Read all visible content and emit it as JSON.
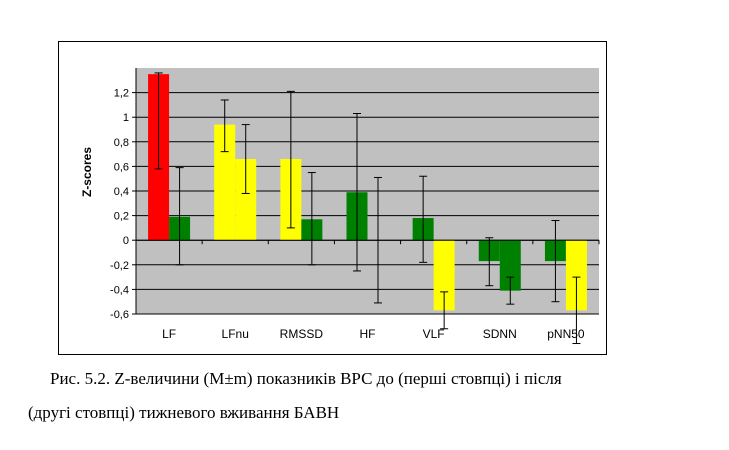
{
  "chart_data": {
    "type": "bar",
    "ylabel": "Z-scores",
    "ylim": [
      -0.6,
      1.4
    ],
    "yticks": [
      "1,2",
      "1",
      "0,8",
      "0,6",
      "0,4",
      "0,2",
      "0",
      "-0,2",
      "-0,4",
      "-0,6"
    ],
    "ytick_values": [
      1.2,
      1.0,
      0.8,
      0.6,
      0.4,
      0.2,
      0.0,
      -0.2,
      -0.4,
      -0.6
    ],
    "grid": true,
    "categories": [
      "LF",
      "LFnu",
      "RMSSD",
      "HF",
      "VLF",
      "SDNN",
      "pNN50"
    ],
    "bars": [
      [
        {
          "value": 1.35,
          "err_low": 0.58,
          "err_high": 1.36,
          "color": "#ff0000"
        },
        {
          "value": 0.19,
          "err_low": -0.2,
          "err_high": 0.59,
          "color": "#008000"
        }
      ],
      [
        {
          "value": 0.94,
          "err_low": 0.72,
          "err_high": 1.14,
          "color": "#ffff00"
        },
        {
          "value": 0.66,
          "err_low": 0.38,
          "err_high": 0.94,
          "color": "#ffff00"
        }
      ],
      [
        {
          "value": 0.66,
          "err_low": 0.1,
          "err_high": 1.21,
          "color": "#ffff00"
        },
        {
          "value": 0.17,
          "err_low": -0.2,
          "err_high": 0.55,
          "color": "#008000"
        }
      ],
      [
        {
          "value": 0.39,
          "err_low": -0.25,
          "err_high": 1.03,
          "color": "#008000"
        },
        {
          "value": 0.0,
          "err_low": -0.51,
          "err_high": 0.51,
          "color": "#008000"
        }
      ],
      [
        {
          "value": 0.18,
          "err_low": -0.18,
          "err_high": 0.52,
          "color": "#008000"
        },
        {
          "value": -0.57,
          "err_low": -0.72,
          "err_high": -0.42,
          "color": "#ffff00"
        }
      ],
      [
        {
          "value": -0.17,
          "err_low": -0.37,
          "err_high": 0.02,
          "color": "#008000"
        },
        {
          "value": -0.41,
          "err_low": -0.52,
          "err_high": -0.3,
          "color": "#008000"
        }
      ],
      [
        {
          "value": -0.17,
          "err_low": -0.5,
          "err_high": 0.16,
          "color": "#008000"
        },
        {
          "value": -0.57,
          "err_low": -0.84,
          "err_high": -0.3,
          "color": "#ffff00"
        }
      ]
    ]
  },
  "caption": {
    "line1": "Рис. 5.2. Z-величини (M±m) показників ВРС до (перші стовпці) і після",
    "line2": "(другі стовпці) тижневого вживання БАВН"
  },
  "colors": {
    "plot_bg": "#c0c0c0",
    "grid": "#000000",
    "red": "#ff0000",
    "green": "#008000",
    "yellow": "#ffff00"
  }
}
